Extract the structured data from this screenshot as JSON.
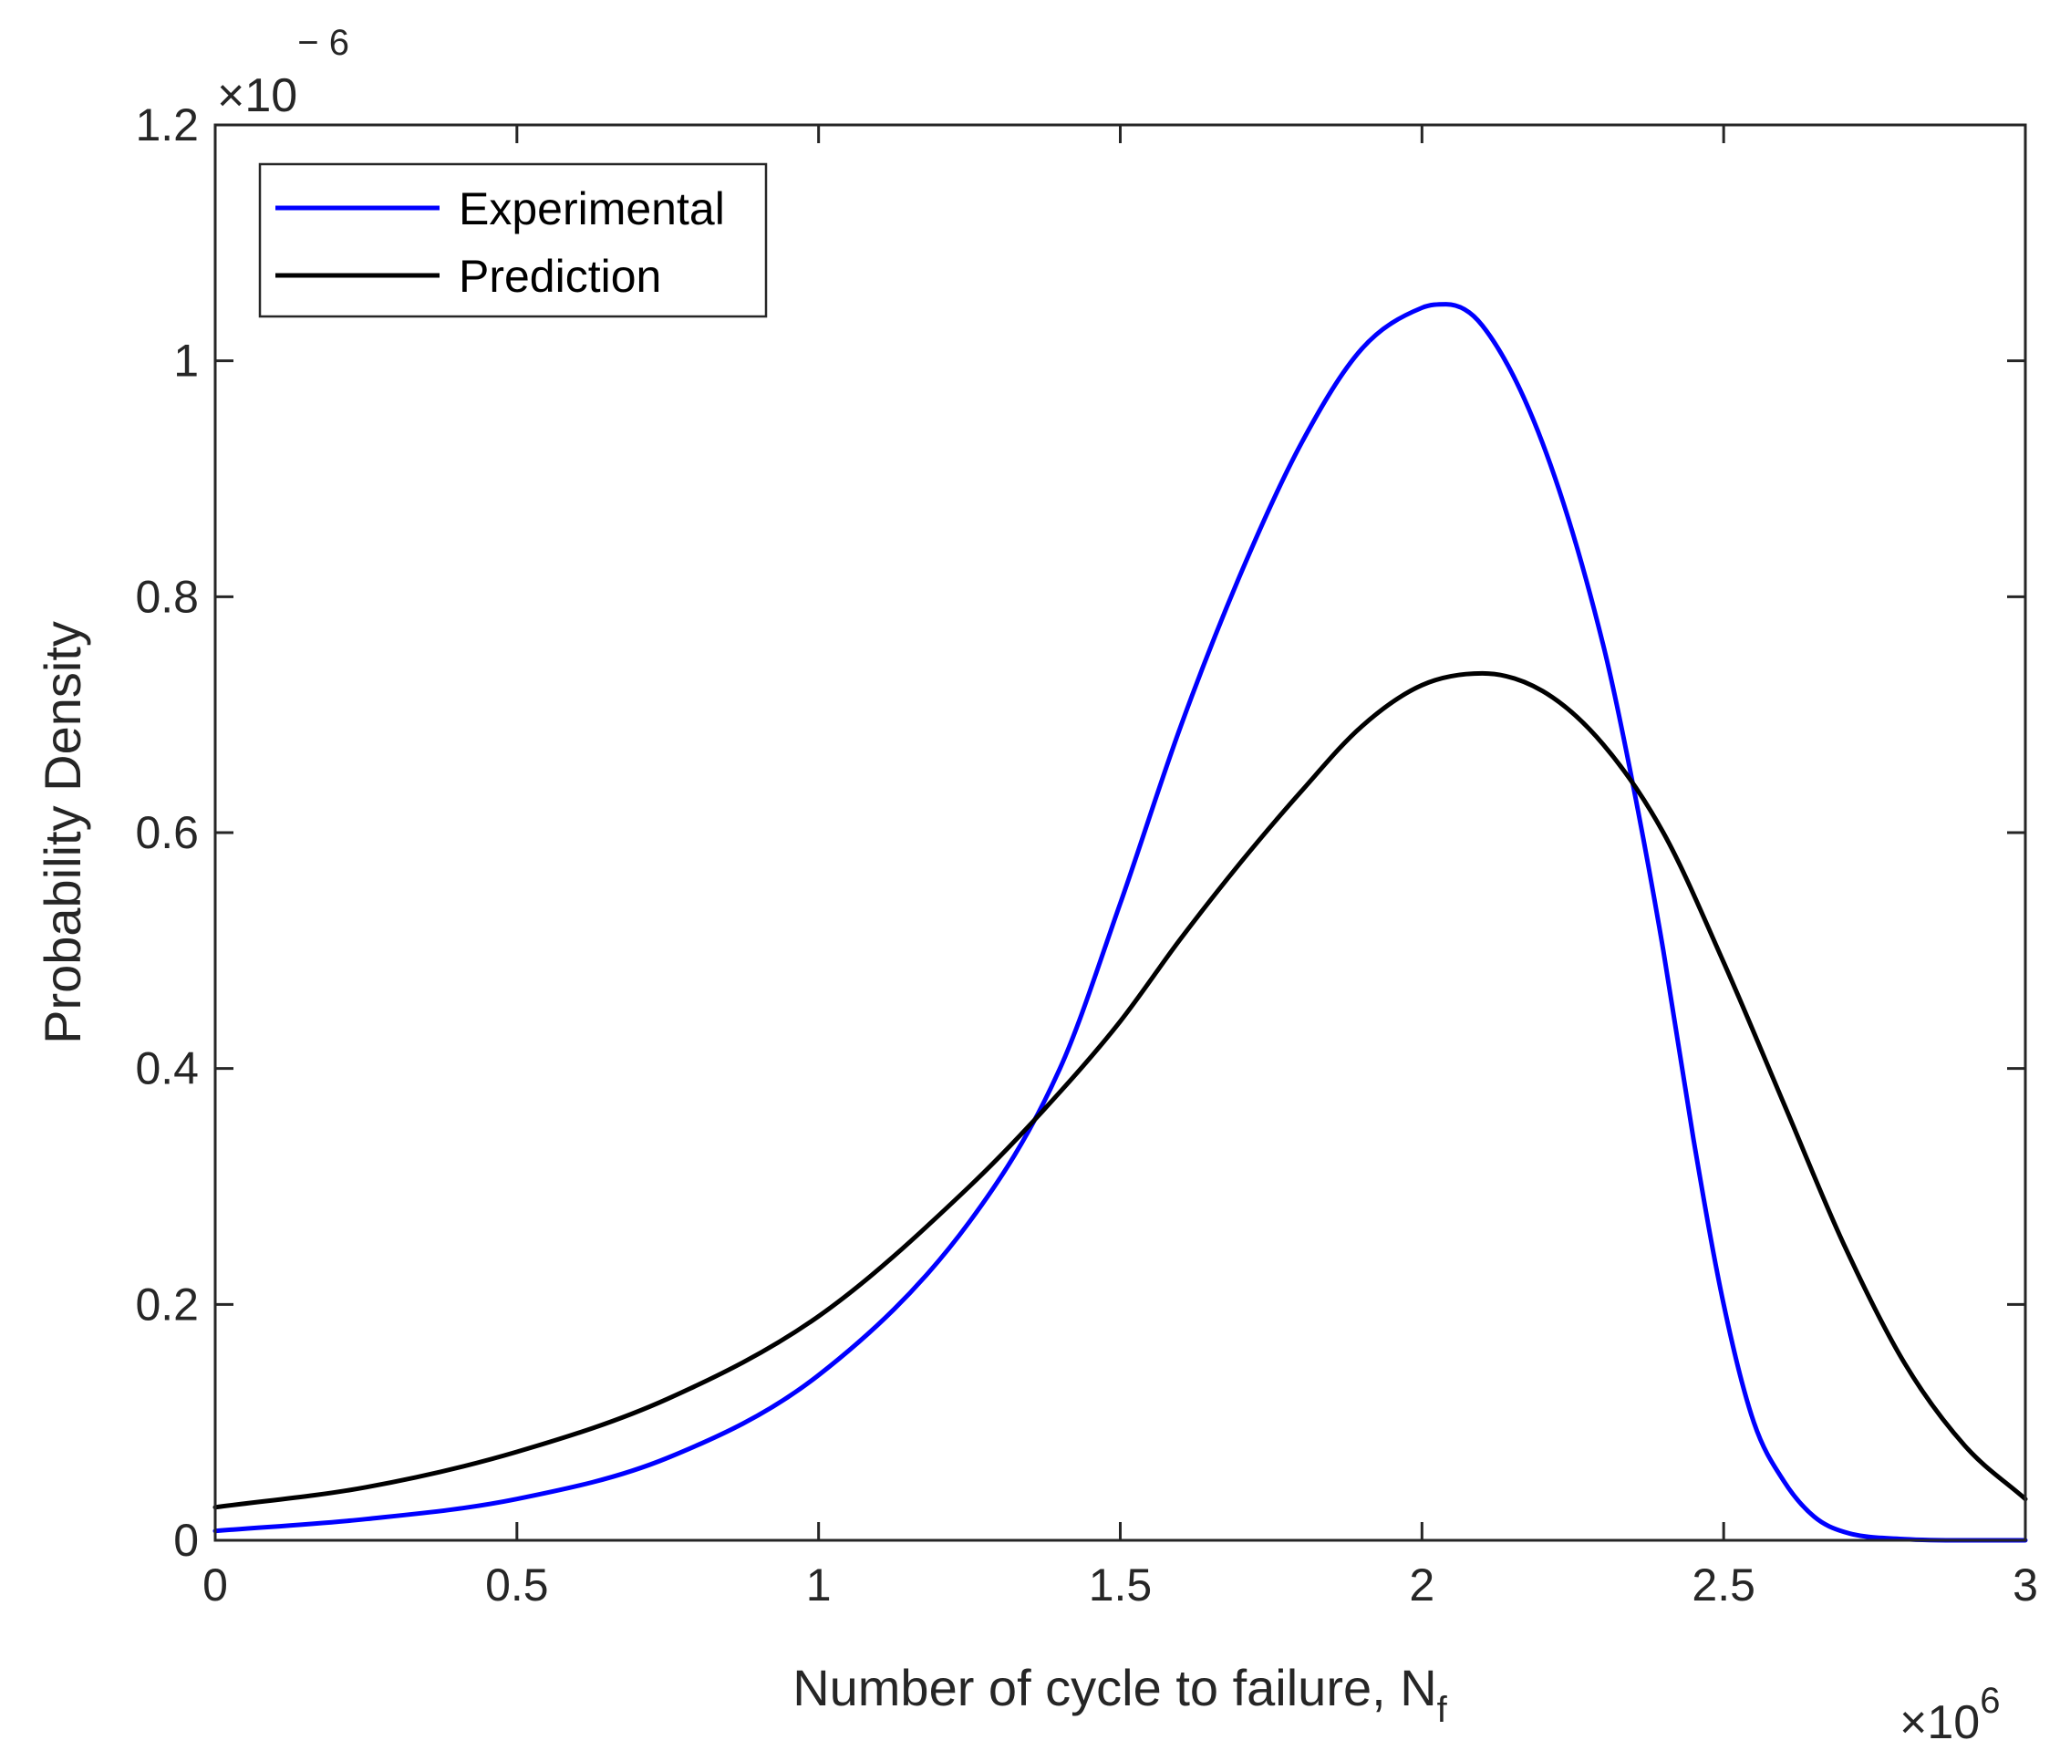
{
  "chart_data": {
    "type": "line",
    "xlabel": "Number of cycle to failure, N",
    "xlabel_subscript": "f",
    "ylabel": "Probability Density",
    "x_multiplier": {
      "prefix": "×10",
      "exponent": "6"
    },
    "y_multiplier": {
      "prefix": "×10",
      "exponent": "− 6"
    },
    "xlim": [
      0,
      3
    ],
    "ylim": [
      0,
      1.2
    ],
    "x_ticks": [
      "0",
      "0.5",
      "1",
      "1.5",
      "2",
      "2.5",
      "3"
    ],
    "y_ticks": [
      "0",
      "0.2",
      "0.4",
      "0.6",
      "0.8",
      "1",
      "1.2"
    ],
    "legend_position": "top-left",
    "grid": false,
    "series": [
      {
        "name": "Experimental",
        "color": "#0000ff",
        "x": [
          0,
          0.25,
          0.5,
          0.75,
          1.0,
          1.25,
          1.4,
          1.5,
          1.6,
          1.7,
          1.8,
          1.9,
          2.0,
          2.04,
          2.1,
          2.2,
          2.3,
          2.35,
          2.4,
          2.45,
          2.5,
          2.55,
          2.6,
          2.65,
          2.7,
          2.8,
          2.9,
          3.0
        ],
        "y": [
          0.008,
          0.018,
          0.035,
          0.07,
          0.14,
          0.27,
          0.4,
          0.54,
          0.69,
          0.82,
          0.93,
          1.01,
          1.045,
          1.048,
          1.03,
          0.93,
          0.76,
          0.64,
          0.5,
          0.34,
          0.2,
          0.1,
          0.05,
          0.02,
          0.007,
          0.001,
          0.0,
          0.0
        ]
      },
      {
        "name": "Prediction",
        "color": "#000000",
        "x": [
          0,
          0.25,
          0.5,
          0.75,
          1.0,
          1.25,
          1.4,
          1.5,
          1.6,
          1.7,
          1.8,
          1.9,
          2.0,
          2.1,
          2.2,
          2.3,
          2.4,
          2.5,
          2.6,
          2.7,
          2.8,
          2.9,
          3.0
        ],
        "y": [
          0.028,
          0.045,
          0.075,
          0.12,
          0.19,
          0.3,
          0.38,
          0.44,
          0.51,
          0.575,
          0.635,
          0.69,
          0.725,
          0.735,
          0.72,
          0.675,
          0.6,
          0.49,
          0.37,
          0.25,
          0.15,
          0.08,
          0.035
        ]
      }
    ]
  }
}
